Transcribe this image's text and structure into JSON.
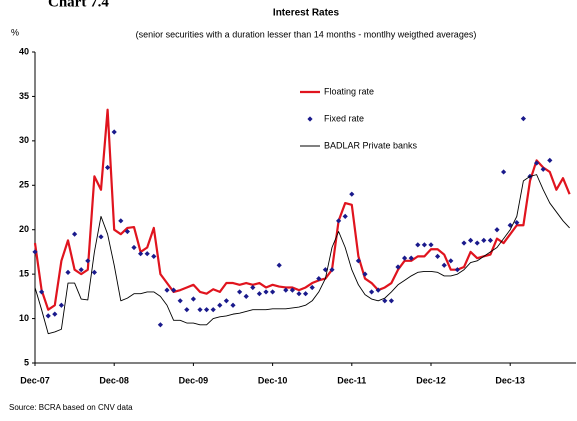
{
  "chart_data": {
    "type": "line",
    "chart_label": "Chart 7.4",
    "title": "Interest Rates",
    "subtitle": "(senior securities with a duration lesser than 14 months - montlhy weigthed averages)",
    "y_label": "%",
    "source": "Source: BCRA based on CNV data",
    "categories": [
      "Dec-07",
      null,
      null,
      null,
      null,
      null,
      null,
      null,
      null,
      null,
      null,
      null,
      "Dec-08",
      null,
      null,
      null,
      null,
      null,
      null,
      null,
      null,
      null,
      null,
      null,
      "Dec-09",
      null,
      null,
      null,
      null,
      null,
      null,
      null,
      null,
      null,
      null,
      null,
      "Dec-10",
      null,
      null,
      null,
      null,
      null,
      null,
      null,
      null,
      null,
      null,
      null,
      "Dec-11",
      null,
      null,
      null,
      null,
      null,
      null,
      null,
      null,
      null,
      null,
      null,
      "Dec-12",
      null,
      null,
      null,
      null,
      null,
      null,
      null,
      null,
      null,
      null,
      null,
      "Dec-13",
      null,
      null,
      null,
      null,
      null,
      null,
      null,
      null,
      null
    ],
    "ylim": [
      5,
      40
    ],
    "yticks": [
      5,
      10,
      15,
      20,
      25,
      30,
      35,
      40
    ],
    "series": [
      {
        "name": "Floating rate",
        "type": "line",
        "color": "#e0141e",
        "width": 2.2,
        "values": [
          18.5,
          13.2,
          11,
          11.5,
          16.5,
          18.8,
          15.5,
          15,
          15.5,
          26,
          24.5,
          33.5,
          20,
          19.5,
          20.2,
          20.3,
          17.5,
          18,
          20.2,
          15,
          14,
          13,
          13.2,
          13.5,
          13.8,
          13,
          12.8,
          13.3,
          13,
          14,
          14,
          13.8,
          14,
          13.8,
          14,
          13.5,
          13.8,
          13.6,
          13.5,
          13.5,
          13.2,
          13.5,
          14,
          14.3,
          14.5,
          15.5,
          21,
          23,
          22.8,
          17,
          14.5,
          14,
          13.2,
          13.5,
          14,
          15.5,
          16.5,
          16.5,
          17,
          17,
          17.8,
          17.8,
          17.2,
          15.5,
          15.5,
          15.8,
          17.5,
          16.8,
          17,
          17.2,
          19,
          18.5,
          19.5,
          20.5,
          20.5,
          25.5,
          27.8,
          27,
          26.5,
          24.5,
          25.8,
          24
        ]
      },
      {
        "name": "Fixed rate",
        "type": "marker",
        "color": "#1a1a8c",
        "values": [
          17.5,
          13,
          10.3,
          10.5,
          11.5,
          15.2,
          19.5,
          15.5,
          16.5,
          15.2,
          19.2,
          27,
          31,
          21,
          19.8,
          18,
          17.3,
          17.3,
          17,
          9.3,
          13.2,
          13.2,
          12,
          11,
          12.2,
          11,
          11,
          11,
          11.5,
          12,
          11.5,
          13,
          12.5,
          13.5,
          12.8,
          13,
          13,
          16,
          13.2,
          13.2,
          12.8,
          12.8,
          13.5,
          14.5,
          15.5,
          15.5,
          21,
          21.5,
          24,
          16.5,
          15,
          13,
          13.2,
          12,
          12,
          15.8,
          16.8,
          16.8,
          18.3,
          18.3,
          18.3,
          17,
          16,
          16.5,
          15.5,
          18.5,
          18.8,
          18.5,
          18.8,
          18.8,
          20,
          26.5,
          20.5,
          20.8,
          32.5,
          26,
          27.5,
          26.8,
          27.8,
          null,
          null,
          null
        ]
      },
      {
        "name": "BADLAR Private banks",
        "type": "line",
        "color": "#000000",
        "width": 0.9,
        "values": [
          13.5,
          11,
          8.3,
          8.5,
          8.8,
          14,
          14,
          12.2,
          12.1,
          17.5,
          21.5,
          19.5,
          16,
          12,
          12.3,
          12.8,
          12.8,
          13,
          13,
          12.5,
          11.5,
          9.8,
          9.8,
          9.5,
          9.5,
          9.3,
          9.3,
          10,
          10.2,
          10.3,
          10.5,
          10.6,
          10.8,
          11,
          11,
          11,
          11.1,
          11.1,
          11.1,
          11.2,
          11.3,
          11.5,
          12,
          13,
          14.5,
          18,
          19.8,
          18,
          15.5,
          13.8,
          12.7,
          12.2,
          12,
          12.3,
          13,
          13.8,
          14.3,
          14.8,
          15.2,
          15.3,
          15.3,
          15.2,
          14.8,
          14.8,
          15,
          15.5,
          16.3,
          16.5,
          17,
          17.5,
          18,
          19,
          20,
          21.5,
          25.5,
          26,
          26.2,
          24.5,
          23,
          22,
          21,
          20.2
        ]
      }
    ]
  }
}
